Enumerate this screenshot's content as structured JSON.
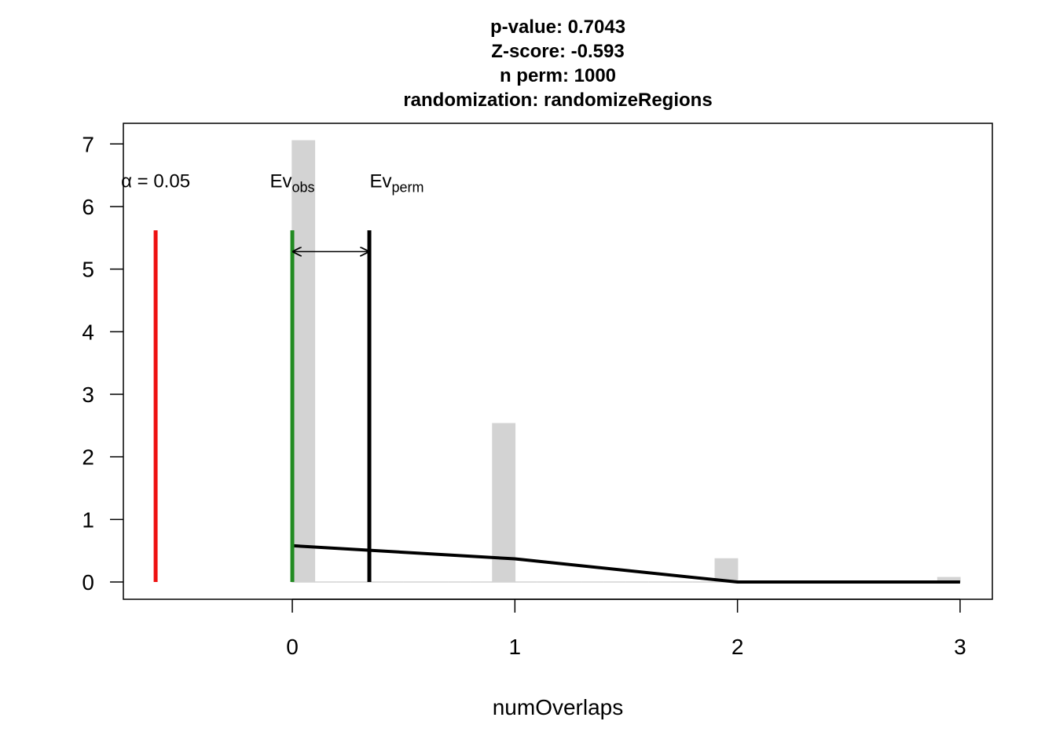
{
  "chart_data": {
    "type": "histogram",
    "title": [
      "p-value:  0.7043",
      "Z-score:  -0.593",
      "n perm:  1000",
      "randomization:  randomizeRegions"
    ],
    "xlabel": "numOverlaps",
    "bins": [
      0,
      0.1,
      0.2,
      0.3,
      0.4,
      0.5,
      0.6,
      0.7,
      0.8,
      0.9,
      1.0,
      1.1,
      1.2,
      1.3,
      1.4,
      1.5,
      1.6,
      1.7,
      1.8,
      1.9,
      2.0,
      2.1,
      2.2,
      2.3,
      2.4,
      2.5,
      2.6,
      2.7,
      2.8,
      2.9,
      3.0
    ],
    "counts": [
      7.05,
      0,
      0,
      0,
      0,
      0,
      0,
      0,
      0,
      2.53,
      0,
      0,
      0,
      0,
      0,
      0,
      0,
      0,
      0,
      0.37,
      0,
      0,
      0,
      0,
      0,
      0,
      0,
      0,
      0,
      0.07
    ],
    "color": "#d3d3d3",
    "density": {
      "x": [
        0,
        1,
        2,
        3
      ],
      "values": [
        0.58,
        0.37,
        0,
        0
      ],
      "color": "#000000"
    },
    "alpha": {
      "label": "α = 0.05",
      "x": -0.614,
      "top": 5.62,
      "color": "#ee1111"
    },
    "ev_obs": {
      "label": "Ev",
      "sub": "obs",
      "x": 0,
      "top": 5.62,
      "color": "#228b22"
    },
    "ev_perm": {
      "label": "Ev",
      "sub": "perm",
      "x": 0.346,
      "top": 5.62,
      "color": "#000000"
    },
    "arrow_y": 5.28,
    "xlim": [
      -0.759,
      3.145
    ],
    "ylim": [
      -0.276,
      7.33
    ],
    "xticks": [
      0,
      1,
      2,
      3
    ],
    "yticks": [
      0,
      1,
      2,
      3,
      4,
      5,
      6,
      7
    ]
  }
}
